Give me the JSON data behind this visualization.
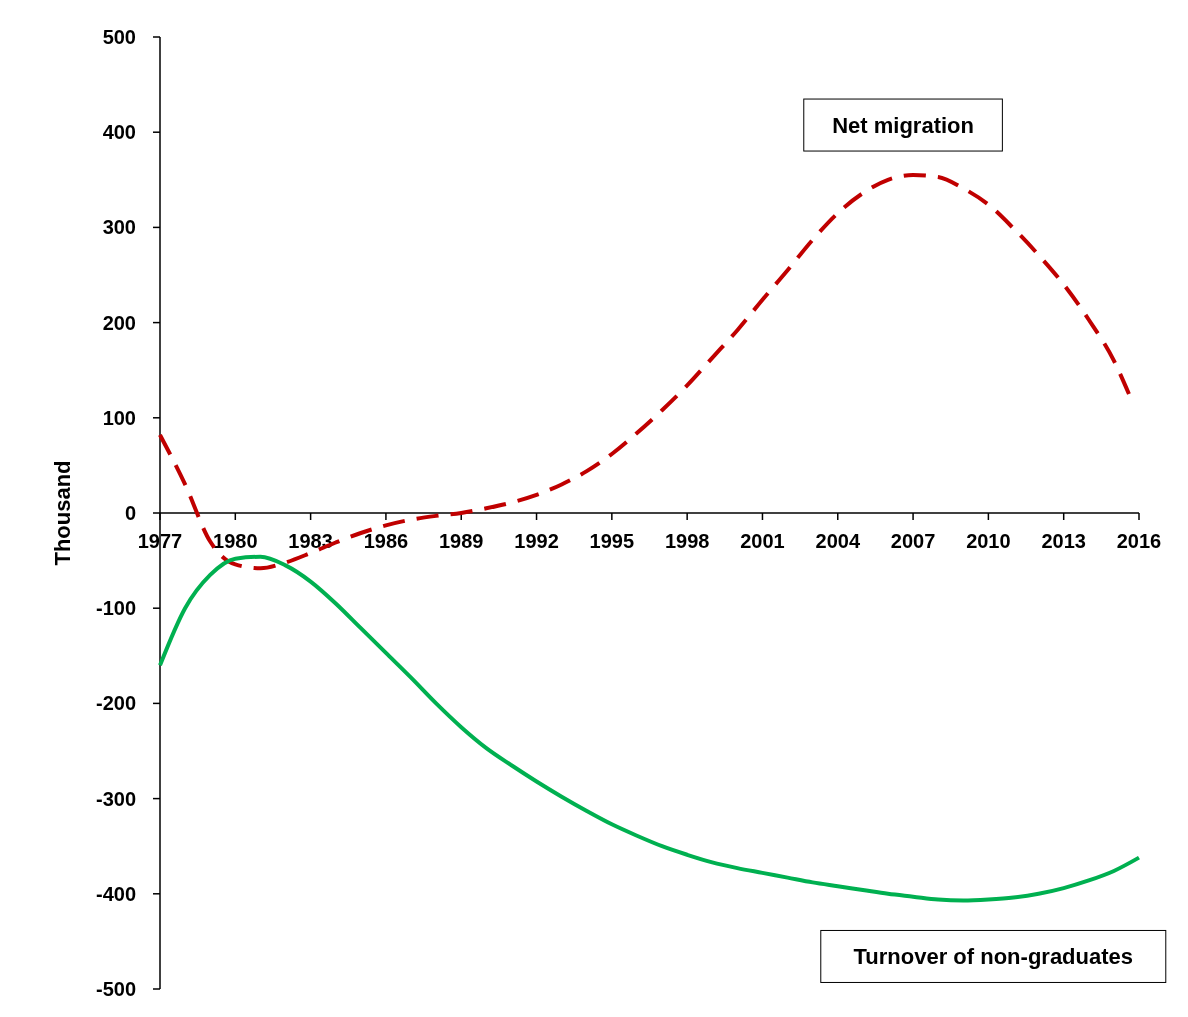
{
  "chart_data": {
    "type": "line",
    "ylabel": "Thousand",
    "xlim": [
      1977,
      2016
    ],
    "xticks": [
      1977,
      1980,
      1983,
      1986,
      1989,
      1992,
      1995,
      1998,
      2001,
      2004,
      2007,
      2010,
      2013,
      2016
    ],
    "ylim": [
      -500,
      500
    ],
    "yticks": [
      -500,
      -400,
      -300,
      -200,
      -100,
      0,
      100,
      200,
      300,
      400,
      500
    ],
    "grid": false,
    "marker": "none",
    "x": [
      1977,
      1978,
      1979,
      1980,
      1981,
      1982,
      1983,
      1984,
      1985,
      1986,
      1987,
      1988,
      1989,
      1990,
      1991,
      1992,
      1993,
      1994,
      1995,
      1996,
      1997,
      1998,
      1999,
      2000,
      2001,
      2002,
      2003,
      2004,
      2005,
      2006,
      2007,
      2008,
      2009,
      2010,
      2011,
      2012,
      2013,
      2014,
      2015,
      2016
    ],
    "series": [
      {
        "name": "Net migration",
        "color": "#c00000",
        "line_style": "dashed",
        "x": [
          1977,
          1978,
          1979,
          1980,
          1981,
          1982,
          1983,
          1984,
          1985,
          1986,
          1987,
          1988,
          1989,
          1990,
          1991,
          1992,
          1993,
          1994,
          1995,
          1996,
          1997,
          1998,
          1999,
          2000,
          2001,
          2002,
          2003,
          2004,
          2005,
          2006,
          2007,
          2008,
          2009,
          2010,
          2011,
          2012,
          2013,
          2014,
          2015,
          2015.6
        ],
        "values": [
          82,
          30,
          -30,
          -54,
          -58,
          -52,
          -42,
          -31,
          -21,
          -13,
          -7,
          -3,
          0,
          5,
          11,
          19,
          30,
          44,
          62,
          84,
          108,
          134,
          163,
          192,
          224,
          255,
          287,
          315,
          336,
          350,
          355,
          353,
          341,
          324,
          299,
          271,
          240,
          203,
          160,
          125
        ]
      },
      {
        "name": "Turnover of non-graduates",
        "color": "#00b050",
        "line_style": "solid",
        "values": [
          -160,
          -100,
          -65,
          -48,
          -46,
          -55,
          -72,
          -95,
          -121,
          -147,
          -173,
          -200,
          -225,
          -247,
          -265,
          -282,
          -298,
          -313,
          -327,
          -339,
          -350,
          -359,
          -367,
          -373,
          -378,
          -383,
          -388,
          -392,
          -396,
          -400,
          -403,
          -406,
          -407,
          -406,
          -404,
          -400,
          -394,
          -386,
          -376,
          -362
        ]
      }
    ]
  }
}
